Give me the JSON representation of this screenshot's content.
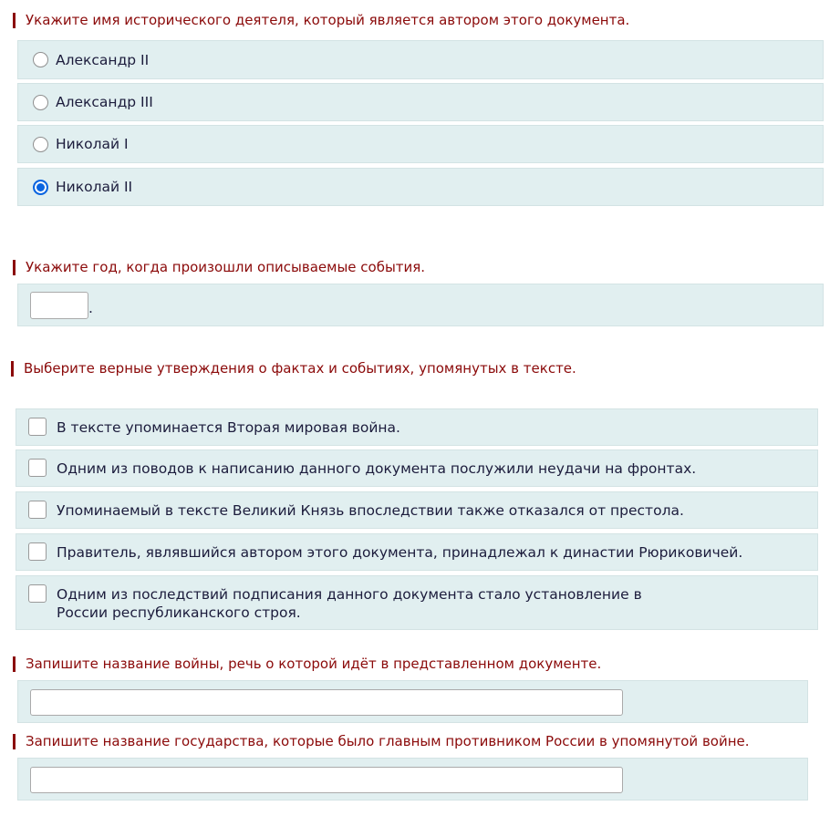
{
  "q1": {
    "title": "Укажите имя исторического деятеля, который является автором этого документа.",
    "options": [
      {
        "label": "Александр II",
        "selected": false
      },
      {
        "label": "Александр III",
        "selected": false
      },
      {
        "label": "Николай I",
        "selected": false
      },
      {
        "label": "Николай II",
        "selected": true
      }
    ]
  },
  "q2": {
    "title": "Укажите год, когда произошли описываемые события.",
    "value": "",
    "suffix": "."
  },
  "q3": {
    "title": "Выберите верные утверждения о фактах и событиях, упомянутых в тексте.",
    "options": [
      {
        "label": "В тексте упоминается Вторая мировая война.",
        "checked": false
      },
      {
        "label": "Одним из поводов к написанию данного документа послужили неудачи на фронтах.",
        "checked": false
      },
      {
        "label": "Упоминаемый в тексте Великий Князь впоследствии также отказался от престола.",
        "checked": false
      },
      {
        "label": "Правитель, являвшийся автором этого документа, принадлежал к династии Рюриковичей.",
        "checked": false
      },
      {
        "label": "Одним из последствий подписания данного документа стало установление в России республиканского строя.",
        "checked": false
      }
    ]
  },
  "q4": {
    "title": "Запишите название войны, речь о которой идёт в представленном документе.",
    "value": ""
  },
  "q5": {
    "title": "Запишите название государства, которые было главным противником России в упомянутой войне.",
    "value": ""
  },
  "colors": {
    "title": "#8b0a0a",
    "box": "#e1eff0",
    "radio_selected": "#0a64e0"
  }
}
